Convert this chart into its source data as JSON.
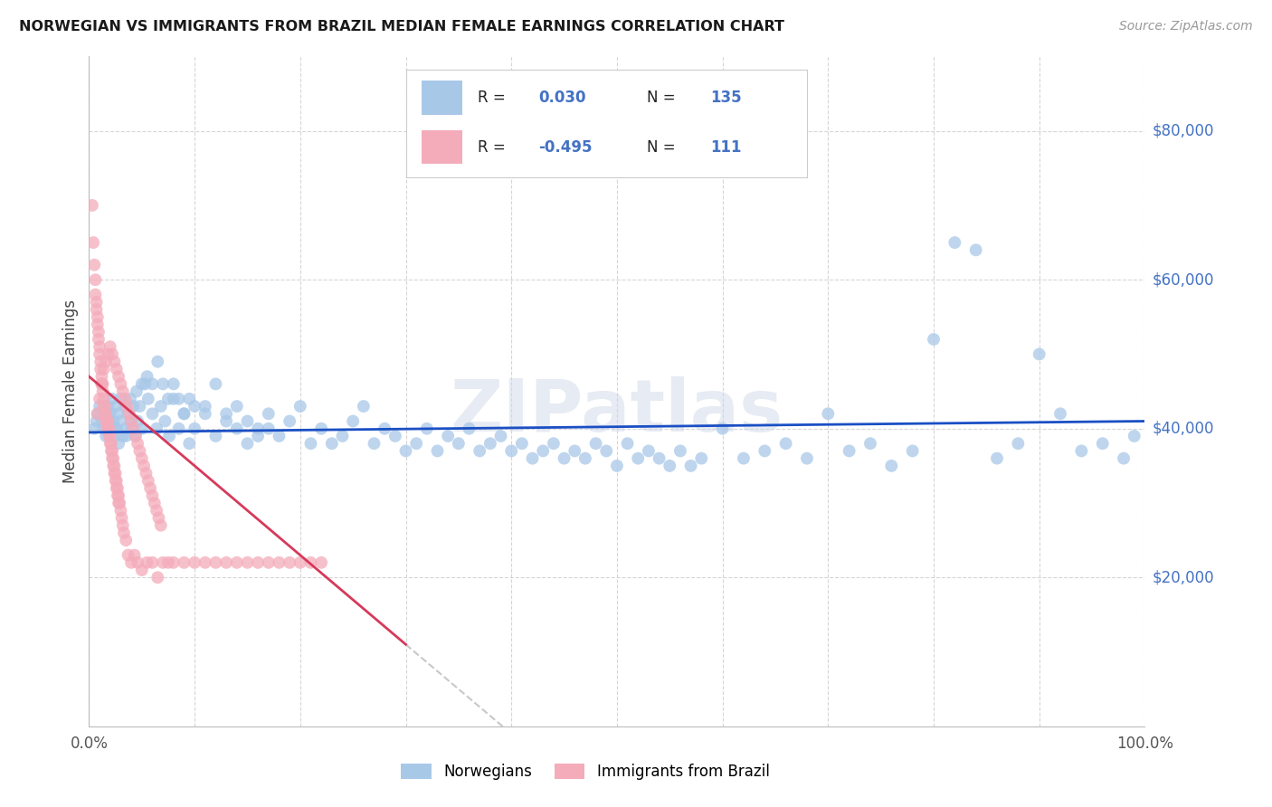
{
  "title": "NORWEGIAN VS IMMIGRANTS FROM BRAZIL MEDIAN FEMALE EARNINGS CORRELATION CHART",
  "source": "Source: ZipAtlas.com",
  "ylabel": "Median Female Earnings",
  "ytick_labels": [
    "$20,000",
    "$40,000",
    "$60,000",
    "$80,000"
  ],
  "ytick_values": [
    20000,
    40000,
    60000,
    80000
  ],
  "ymin": 0,
  "ymax": 90000,
  "xmin": 0.0,
  "xmax": 1.0,
  "legend_label1": "Norwegians",
  "legend_label2": "Immigrants from Brazil",
  "watermark": "ZIPatlas",
  "blue_color": "#A8C8E8",
  "pink_color": "#F4ABBA",
  "line_blue": "#1A4FC4",
  "line_pink": "#D63A5A",
  "line_gray": "#C8C8C8",
  "title_color": "#1a1a1a",
  "ytick_color": "#4472C4",
  "background_color": "#FFFFFF",
  "grid_color": "#CCCCCC",
  "nor_R": 0.03,
  "nor_N": 135,
  "bra_R": -0.495,
  "bra_N": 111,
  "nor_intercept": 39500,
  "nor_slope": 1500,
  "bra_intercept": 47000,
  "bra_slope": -120000,
  "bra_line_end_x": 0.3,
  "norwegians_x": [
    0.005,
    0.007,
    0.008,
    0.01,
    0.012,
    0.014,
    0.015,
    0.016,
    0.018,
    0.019,
    0.02,
    0.021,
    0.022,
    0.023,
    0.024,
    0.025,
    0.026,
    0.027,
    0.028,
    0.03,
    0.032,
    0.034,
    0.035,
    0.037,
    0.039,
    0.04,
    0.042,
    0.044,
    0.046,
    0.048,
    0.05,
    0.053,
    0.056,
    0.06,
    0.064,
    0.068,
    0.072,
    0.076,
    0.08,
    0.085,
    0.09,
    0.095,
    0.1,
    0.11,
    0.12,
    0.13,
    0.14,
    0.15,
    0.16,
    0.17,
    0.18,
    0.19,
    0.2,
    0.21,
    0.22,
    0.23,
    0.24,
    0.25,
    0.26,
    0.27,
    0.28,
    0.29,
    0.3,
    0.31,
    0.32,
    0.33,
    0.34,
    0.35,
    0.36,
    0.37,
    0.38,
    0.39,
    0.4,
    0.41,
    0.42,
    0.43,
    0.44,
    0.45,
    0.46,
    0.47,
    0.48,
    0.49,
    0.5,
    0.51,
    0.52,
    0.53,
    0.54,
    0.55,
    0.56,
    0.57,
    0.58,
    0.6,
    0.62,
    0.64,
    0.66,
    0.68,
    0.7,
    0.72,
    0.74,
    0.76,
    0.78,
    0.8,
    0.82,
    0.84,
    0.86,
    0.88,
    0.9,
    0.92,
    0.94,
    0.96,
    0.98,
    0.99,
    0.025,
    0.03,
    0.035,
    0.04,
    0.045,
    0.05,
    0.055,
    0.06,
    0.065,
    0.07,
    0.075,
    0.08,
    0.085,
    0.09,
    0.095,
    0.1,
    0.11,
    0.12,
    0.13,
    0.14,
    0.15,
    0.16,
    0.17
  ],
  "norwegians_y": [
    40000,
    41000,
    42000,
    43000,
    41000,
    40000,
    42000,
    39000,
    43000,
    41000,
    42000,
    40000,
    44000,
    41000,
    39000,
    43000,
    40000,
    42000,
    38000,
    41000,
    39000,
    43000,
    40000,
    42000,
    44000,
    41000,
    43000,
    39000,
    41000,
    43000,
    40000,
    46000,
    44000,
    42000,
    40000,
    43000,
    41000,
    39000,
    44000,
    40000,
    42000,
    38000,
    40000,
    42000,
    39000,
    41000,
    43000,
    38000,
    40000,
    42000,
    39000,
    41000,
    43000,
    38000,
    40000,
    38000,
    39000,
    41000,
    43000,
    38000,
    40000,
    39000,
    37000,
    38000,
    40000,
    37000,
    39000,
    38000,
    40000,
    37000,
    38000,
    39000,
    37000,
    38000,
    36000,
    37000,
    38000,
    36000,
    37000,
    36000,
    38000,
    37000,
    35000,
    38000,
    36000,
    37000,
    36000,
    35000,
    37000,
    35000,
    36000,
    40000,
    36000,
    37000,
    38000,
    36000,
    42000,
    37000,
    38000,
    35000,
    37000,
    52000,
    65000,
    64000,
    36000,
    38000,
    50000,
    42000,
    37000,
    38000,
    36000,
    39000,
    40000,
    44000,
    39000,
    40000,
    45000,
    46000,
    47000,
    46000,
    49000,
    46000,
    44000,
    46000,
    44000,
    42000,
    44000,
    43000,
    43000,
    46000,
    42000,
    40000,
    41000,
    39000,
    40000
  ],
  "brazil_x": [
    0.003,
    0.004,
    0.005,
    0.006,
    0.006,
    0.007,
    0.007,
    0.008,
    0.008,
    0.009,
    0.009,
    0.01,
    0.01,
    0.011,
    0.011,
    0.012,
    0.012,
    0.013,
    0.013,
    0.014,
    0.014,
    0.015,
    0.015,
    0.016,
    0.016,
    0.017,
    0.017,
    0.018,
    0.018,
    0.019,
    0.019,
    0.02,
    0.02,
    0.021,
    0.021,
    0.022,
    0.022,
    0.023,
    0.023,
    0.024,
    0.024,
    0.025,
    0.025,
    0.026,
    0.026,
    0.027,
    0.027,
    0.028,
    0.028,
    0.029,
    0.03,
    0.031,
    0.032,
    0.033,
    0.035,
    0.037,
    0.04,
    0.043,
    0.046,
    0.05,
    0.055,
    0.06,
    0.065,
    0.07,
    0.075,
    0.08,
    0.09,
    0.1,
    0.11,
    0.12,
    0.13,
    0.14,
    0.15,
    0.16,
    0.17,
    0.18,
    0.19,
    0.2,
    0.21,
    0.22,
    0.008,
    0.01,
    0.012,
    0.014,
    0.016,
    0.018,
    0.02,
    0.022,
    0.024,
    0.026,
    0.028,
    0.03,
    0.032,
    0.034,
    0.036,
    0.038,
    0.04,
    0.042,
    0.044,
    0.046,
    0.048,
    0.05,
    0.052,
    0.054,
    0.056,
    0.058,
    0.06,
    0.062,
    0.064,
    0.066,
    0.068
  ],
  "brazil_y": [
    70000,
    65000,
    62000,
    60000,
    58000,
    57000,
    56000,
    55000,
    54000,
    53000,
    52000,
    51000,
    50000,
    49000,
    48000,
    47000,
    46000,
    46000,
    45000,
    44000,
    43000,
    42000,
    43000,
    41000,
    42000,
    41000,
    40000,
    41000,
    40000,
    40000,
    39000,
    39000,
    38000,
    38000,
    37000,
    37000,
    36000,
    36000,
    35000,
    35000,
    34000,
    34000,
    33000,
    33000,
    32000,
    32000,
    31000,
    31000,
    30000,
    30000,
    29000,
    28000,
    27000,
    26000,
    25000,
    23000,
    22000,
    23000,
    22000,
    21000,
    22000,
    22000,
    20000,
    22000,
    22000,
    22000,
    22000,
    22000,
    22000,
    22000,
    22000,
    22000,
    22000,
    22000,
    22000,
    22000,
    22000,
    22000,
    22000,
    22000,
    42000,
    44000,
    46000,
    48000,
    49000,
    50000,
    51000,
    50000,
    49000,
    48000,
    47000,
    46000,
    45000,
    44000,
    43000,
    42000,
    41000,
    40000,
    39000,
    38000,
    37000,
    36000,
    35000,
    34000,
    33000,
    32000,
    31000,
    30000,
    29000,
    28000,
    27000
  ]
}
